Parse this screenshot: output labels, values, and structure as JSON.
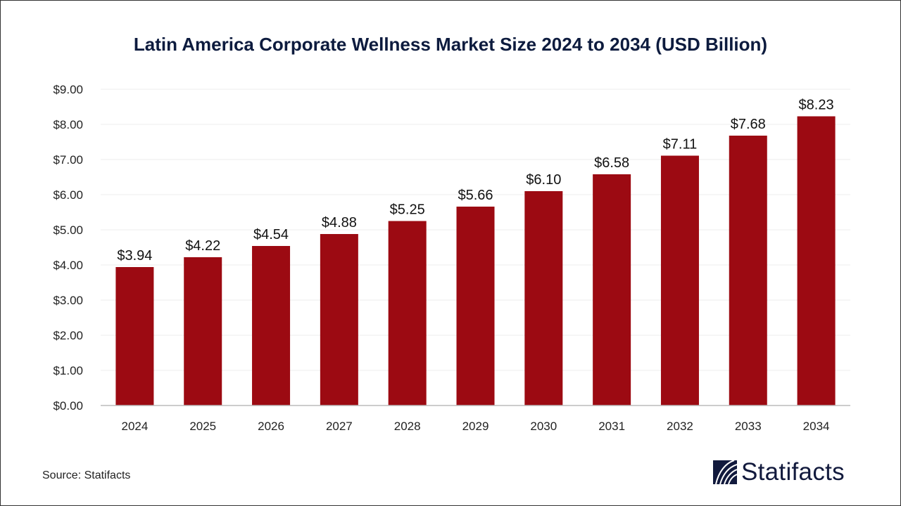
{
  "chart_data": {
    "type": "bar",
    "title": "Latin America Corporate Wellness Market Size 2024 to 2034 (USD Billion)",
    "categories": [
      "2024",
      "2025",
      "2026",
      "2027",
      "2028",
      "2029",
      "2030",
      "2031",
      "2032",
      "2033",
      "2034"
    ],
    "values": [
      3.94,
      4.22,
      4.54,
      4.88,
      5.25,
      5.66,
      6.1,
      6.58,
      7.11,
      7.68,
      8.23
    ],
    "data_labels": [
      "$3.94",
      "$4.22",
      "$4.54",
      "$4.88",
      "$5.25",
      "$5.66",
      "$6.10",
      "$6.58",
      "$7.11",
      "$7.68",
      "$8.23"
    ],
    "yticks": [
      "$0.00",
      "$1.00",
      "$2.00",
      "$3.00",
      "$4.00",
      "$5.00",
      "$6.00",
      "$7.00",
      "$8.00",
      "$9.00"
    ],
    "ylim": [
      0,
      9
    ],
    "xlabel": "",
    "ylabel": "",
    "grid": true,
    "bar_color": "#9c0a12"
  },
  "source": "Source: Statifacts",
  "logo": {
    "text": "Statifacts",
    "color": "#121a3d"
  }
}
